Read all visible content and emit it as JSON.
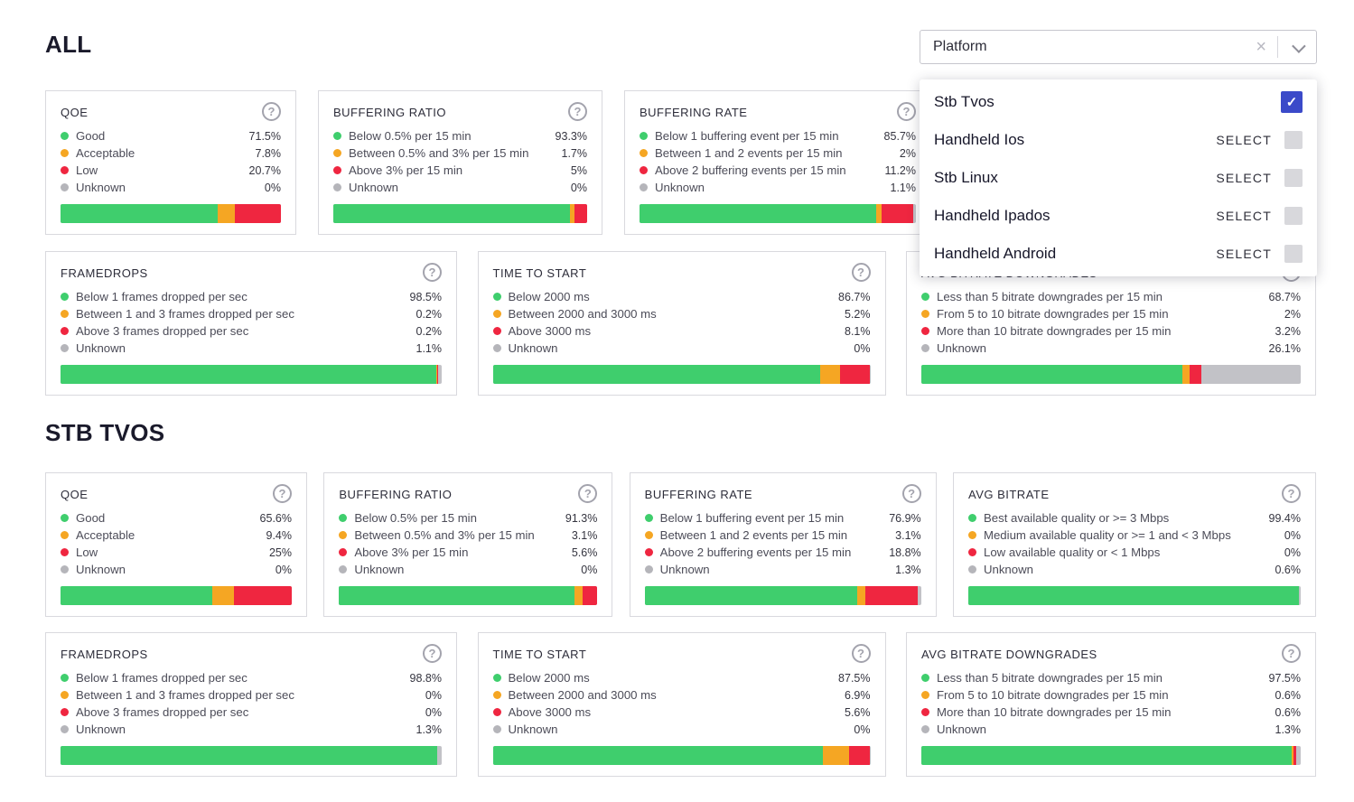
{
  "headings": {
    "all": "ALL",
    "stb": "STB TVOS"
  },
  "colors": {
    "series": [
      "#3fce6d",
      "#f5a623",
      "#ef2640",
      "#b5b5ba"
    ],
    "accent_checkbox": "#3b4ac9",
    "bar_unknown": "#c2c2c7"
  },
  "icons": {
    "help": "?",
    "clear": "×",
    "check": "✓",
    "chevron": "chevron-down"
  },
  "filter": {
    "value": "Platform",
    "options": [
      {
        "label": "Stb Tvos",
        "checked": true
      },
      {
        "label": "Handheld Ios",
        "checked": false,
        "action": "SELECT"
      },
      {
        "label": "Stb Linux",
        "checked": false,
        "action": "SELECT"
      },
      {
        "label": "Handheld Ipados",
        "checked": false,
        "action": "SELECT"
      },
      {
        "label": "Handheld Android",
        "checked": false,
        "action": "SELECT"
      }
    ]
  },
  "sections": {
    "all": {
      "row1": [
        {
          "title": "QOE",
          "legend": [
            {
              "label": "Good",
              "value": "71.5%"
            },
            {
              "label": "Acceptable",
              "value": "7.8%"
            },
            {
              "label": "Low",
              "value": "20.7%"
            },
            {
              "label": "Unknown",
              "value": "0%"
            }
          ]
        },
        {
          "title": "BUFFERING RATIO",
          "legend": [
            {
              "label": "Below 0.5% per 15 min",
              "value": "93.3%"
            },
            {
              "label": "Between 0.5% and 3% per 15 min",
              "value": "1.7%"
            },
            {
              "label": "Above 3% per 15 min",
              "value": "5%"
            },
            {
              "label": "Unknown",
              "value": "0%"
            }
          ]
        },
        {
          "title": "BUFFERING RATE",
          "legend": [
            {
              "label": "Below 1 buffering event per 15 min",
              "value": "85.7%"
            },
            {
              "label": "Between 1 and 2 events per 15 min",
              "value": "2%"
            },
            {
              "label": "Above 2 buffering events per 15 min",
              "value": "11.2%"
            },
            {
              "label": "Unknown",
              "value": "1.1%"
            }
          ]
        },
        {
          "covered": true
        }
      ],
      "row2": [
        {
          "title": "FRAMEDROPS",
          "legend": [
            {
              "label": "Below 1 frames dropped per sec",
              "value": "98.5%"
            },
            {
              "label": "Between 1 and 3 frames dropped per sec",
              "value": "0.2%"
            },
            {
              "label": "Above 3 frames dropped per sec",
              "value": "0.2%"
            },
            {
              "label": "Unknown",
              "value": "1.1%"
            }
          ]
        },
        {
          "title": "TIME TO START",
          "legend": [
            {
              "label": "Below 2000 ms",
              "value": "86.7%"
            },
            {
              "label": "Between 2000 and 3000 ms",
              "value": "5.2%"
            },
            {
              "label": "Above 3000 ms",
              "value": "8.1%"
            },
            {
              "label": "Unknown",
              "value": "0%"
            }
          ]
        },
        {
          "title": "AVG BITRATE DOWNGRADES",
          "legend": [
            {
              "label": "Less than 5 bitrate downgrades per 15 min",
              "value": "68.7%"
            },
            {
              "label": "From 5 to 10 bitrate downgrades per 15 min",
              "value": "2%"
            },
            {
              "label": "More than 10 bitrate downgrades per 15 min",
              "value": "3.2%"
            },
            {
              "label": "Unknown",
              "value": "26.1%"
            }
          ]
        }
      ]
    },
    "stb": {
      "row1": [
        {
          "title": "QOE",
          "legend": [
            {
              "label": "Good",
              "value": "65.6%"
            },
            {
              "label": "Acceptable",
              "value": "9.4%"
            },
            {
              "label": "Low",
              "value": "25%"
            },
            {
              "label": "Unknown",
              "value": "0%"
            }
          ]
        },
        {
          "title": "BUFFERING RATIO",
          "legend": [
            {
              "label": "Below 0.5% per 15 min",
              "value": "91.3%"
            },
            {
              "label": "Between 0.5% and 3% per 15 min",
              "value": "3.1%"
            },
            {
              "label": "Above 3% per 15 min",
              "value": "5.6%"
            },
            {
              "label": "Unknown",
              "value": "0%"
            }
          ]
        },
        {
          "title": "BUFFERING RATE",
          "legend": [
            {
              "label": "Below 1 buffering event per 15 min",
              "value": "76.9%"
            },
            {
              "label": "Between 1 and 2 events per 15 min",
              "value": "3.1%"
            },
            {
              "label": "Above 2 buffering events per 15 min",
              "value": "18.8%"
            },
            {
              "label": "Unknown",
              "value": "1.3%"
            }
          ]
        },
        {
          "title": "AVG BITRATE",
          "legend": [
            {
              "label": "Best available quality or >= 3 Mbps",
              "value": "99.4%"
            },
            {
              "label": "Medium available quality or >= 1 and < 3 Mbps",
              "value": "0%"
            },
            {
              "label": "Low available quality or < 1 Mbps",
              "value": "0%"
            },
            {
              "label": "Unknown",
              "value": "0.6%"
            }
          ]
        }
      ],
      "row2": [
        {
          "title": "FRAMEDROPS",
          "legend": [
            {
              "label": "Below 1 frames dropped per sec",
              "value": "98.8%"
            },
            {
              "label": "Between 1 and 3 frames dropped per sec",
              "value": "0%"
            },
            {
              "label": "Above 3 frames dropped per sec",
              "value": "0%"
            },
            {
              "label": "Unknown",
              "value": "1.3%"
            }
          ]
        },
        {
          "title": "TIME TO START",
          "legend": [
            {
              "label": "Below 2000 ms",
              "value": "87.5%"
            },
            {
              "label": "Between 2000 and 3000 ms",
              "value": "6.9%"
            },
            {
              "label": "Above 3000 ms",
              "value": "5.6%"
            },
            {
              "label": "Unknown",
              "value": "0%"
            }
          ]
        },
        {
          "title": "AVG BITRATE DOWNGRADES",
          "legend": [
            {
              "label": "Less than 5 bitrate downgrades per 15 min",
              "value": "97.5%"
            },
            {
              "label": "From 5 to 10 bitrate downgrades per 15 min",
              "value": "0.6%"
            },
            {
              "label": "More than 10 bitrate downgrades per 15 min",
              "value": "0.6%"
            },
            {
              "label": "Unknown",
              "value": "1.3%"
            }
          ]
        }
      ]
    }
  }
}
